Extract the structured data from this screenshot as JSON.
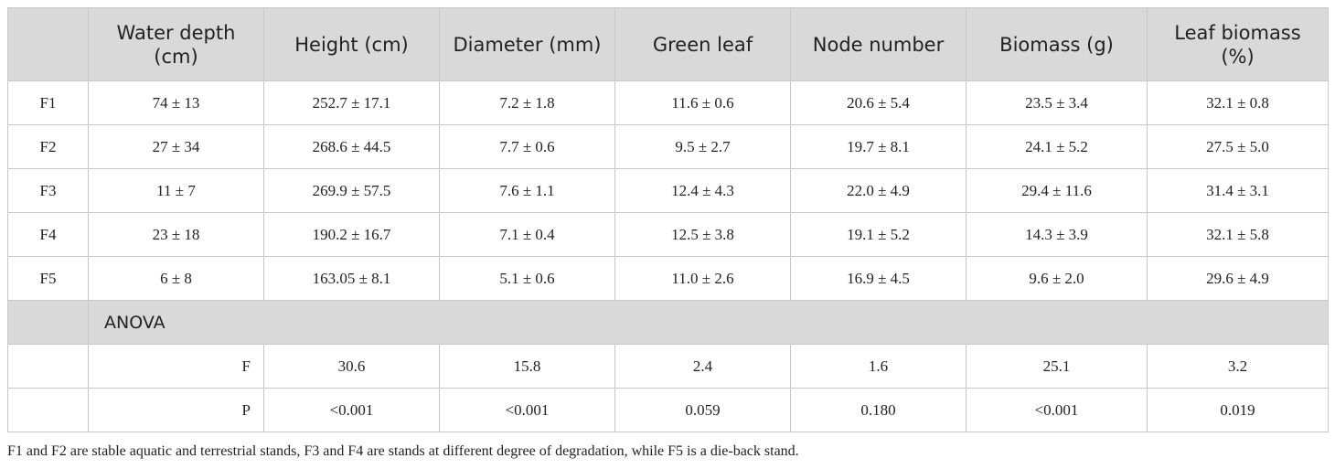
{
  "table": {
    "headers": [
      "Water depth (cm)",
      "Height (cm)",
      "Diameter (mm)",
      "Green leaf",
      "Node number",
      "Biomass (g)",
      "Leaf biomass (%)"
    ],
    "rows": [
      {
        "label": "F1",
        "cells": [
          "74 ± 13",
          "252.7 ± 17.1",
          "7.2 ± 1.8",
          "11.6 ± 0.6",
          "20.6 ± 5.4",
          "23.5 ± 3.4",
          "32.1 ± 0.8"
        ]
      },
      {
        "label": "F2",
        "cells": [
          "27 ± 34",
          "268.6 ± 44.5",
          "7.7 ± 0.6",
          "9.5 ± 2.7",
          "19.7 ± 8.1",
          "24.1 ± 5.2",
          "27.5 ± 5.0"
        ]
      },
      {
        "label": "F3",
        "cells": [
          "11 ± 7",
          "269.9 ± 57.5",
          "7.6 ± 1.1",
          "12.4 ± 4.3",
          "22.0 ± 4.9",
          "29.4 ± 11.6",
          "31.4 ± 3.1"
        ]
      },
      {
        "label": "F4",
        "cells": [
          "23 ± 18",
          "190.2 ± 16.7",
          "7.1 ± 0.4",
          "12.5 ± 3.8",
          "19.1 ± 5.2",
          "14.3 ± 3.9",
          "32.1 ± 5.8"
        ]
      },
      {
        "label": "F5",
        "cells": [
          "6 ± 8",
          "163.05 ± 8.1",
          "5.1 ± 0.6",
          "11.0 ± 2.6",
          "16.9 ± 4.5",
          "9.6 ± 2.0",
          "29.6 ± 4.9"
        ]
      }
    ],
    "anova": {
      "title": "ANOVA",
      "rows": [
        {
          "label": "F",
          "values": [
            "30.6",
            "15.8",
            "2.4",
            "1.6",
            "25.1",
            "3.2"
          ]
        },
        {
          "label": "P",
          "values": [
            "<0.001",
            "<0.001",
            "0.059",
            "0.180",
            "<0.001",
            "0.019"
          ]
        }
      ]
    }
  },
  "footnote": "F1 and F2 are stable aquatic and terrestrial stands, F3 and F4 are stands at different degree of degradation, while F5 is a die-back stand."
}
